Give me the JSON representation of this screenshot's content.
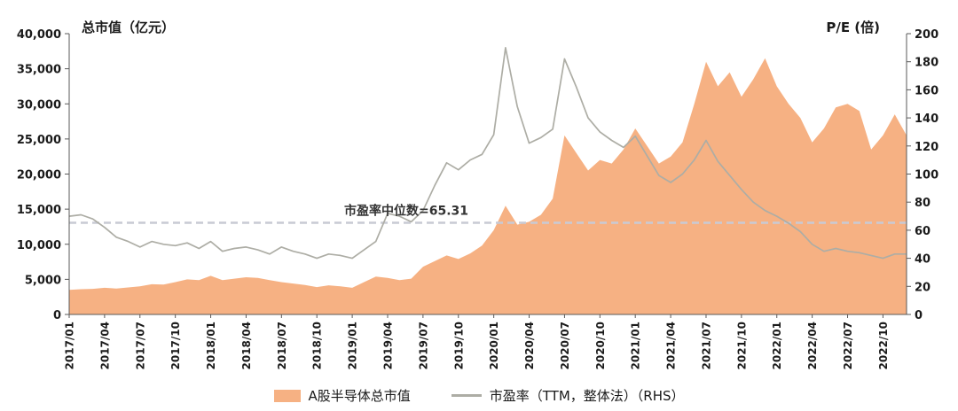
{
  "chart_data": {
    "type": "area",
    "title": "",
    "categories": [
      "2017/01",
      "2017/02",
      "2017/03",
      "2017/04",
      "2017/05",
      "2017/06",
      "2017/07",
      "2017/08",
      "2017/09",
      "2017/10",
      "2017/11",
      "2017/12",
      "2018/01",
      "2018/02",
      "2018/03",
      "2018/04",
      "2018/05",
      "2018/06",
      "2018/07",
      "2018/08",
      "2018/09",
      "2018/10",
      "2018/11",
      "2018/12",
      "2019/01",
      "2019/02",
      "2019/03",
      "2019/04",
      "2019/05",
      "2019/06",
      "2019/07",
      "2019/08",
      "2019/09",
      "2019/10",
      "2019/11",
      "2019/12",
      "2020/01",
      "2020/02",
      "2020/03",
      "2020/04",
      "2020/05",
      "2020/06",
      "2020/07",
      "2020/08",
      "2020/09",
      "2020/10",
      "2020/11",
      "2020/12",
      "2021/01",
      "2021/02",
      "2021/03",
      "2021/04",
      "2021/05",
      "2021/06",
      "2021/07",
      "2021/08",
      "2021/09",
      "2021/10",
      "2021/11",
      "2021/12",
      "2022/01",
      "2022/02",
      "2022/03",
      "2022/04",
      "2022/05",
      "2022/06",
      "2022/07",
      "2022/08",
      "2022/09",
      "2022/10",
      "2022/11",
      "2022/12"
    ],
    "series": [
      {
        "name": "A股半导体总市值",
        "type": "area",
        "axis": "left",
        "color": "#F6B183",
        "values": [
          3500,
          3600,
          3650,
          3800,
          3700,
          3850,
          4000,
          4300,
          4250,
          4600,
          5000,
          4900,
          5500,
          4900,
          5100,
          5300,
          5200,
          4900,
          4600,
          4400,
          4200,
          3900,
          4150,
          4000,
          3800,
          4600,
          5400,
          5200,
          4900,
          5100,
          6800,
          7600,
          8400,
          7900,
          8700,
          9800,
          12000,
          15500,
          12800,
          13200,
          14200,
          16500,
          25500,
          23000,
          20500,
          22000,
          21500,
          23500,
          26500,
          24000,
          21500,
          22500,
          24500,
          30000,
          36000,
          32500,
          34500,
          31000,
          33500,
          36500,
          32500,
          30000,
          28000,
          24500,
          26500,
          29500,
          30000,
          29000,
          23500,
          25500,
          28500,
          25500
        ]
      },
      {
        "name": "市盈率（TTM，整体法）（RHS）",
        "type": "line",
        "axis": "right",
        "color": "#ADADA5",
        "values": [
          70,
          71,
          68,
          62,
          55,
          52,
          48,
          52,
          50,
          49,
          51,
          47,
          52,
          45,
          47,
          48,
          46,
          43,
          48,
          45,
          43,
          40,
          43,
          42,
          40,
          46,
          52,
          72,
          70,
          66,
          74,
          92,
          108,
          103,
          110,
          114,
          128,
          190,
          148,
          122,
          126,
          132,
          182,
          162,
          140,
          130,
          124,
          119,
          127,
          113,
          99,
          94,
          100,
          110,
          124,
          109,
          99,
          89,
          80,
          74,
          70,
          65,
          59,
          50,
          45,
          47,
          45,
          44,
          42,
          40,
          43,
          43
        ]
      }
    ],
    "left_axis": {
      "title": "总市值（亿元）",
      "min": 0,
      "max": 40000,
      "tick_labels": [
        "0",
        "5,000",
        "10,000",
        "15,000",
        "20,000",
        "25,000",
        "30,000",
        "35,000",
        "40,000"
      ]
    },
    "right_axis": {
      "title": "P/E (倍)",
      "min": 0,
      "max": 200,
      "tick_labels": [
        "0",
        "20",
        "40",
        "60",
        "80",
        "100",
        "120",
        "140",
        "160",
        "180",
        "200"
      ]
    },
    "x_tick_labels": [
      "2017/01",
      "2017/04",
      "2017/07",
      "2017/10",
      "2018/01",
      "2018/04",
      "2018/07",
      "2018/10",
      "2019/01",
      "2019/04",
      "2019/07",
      "2019/10",
      "2020/01",
      "2020/04",
      "2020/07",
      "2020/10",
      "2021/01",
      "2021/04",
      "2021/07",
      "2021/10",
      "2022/01",
      "2022/04",
      "2022/07",
      "2022/10"
    ],
    "median_line": {
      "value": 65.31,
      "label": "市盈率中位数=65.31",
      "color": "#C8CAD4"
    },
    "grid": "off",
    "legend_position": "bottom"
  }
}
